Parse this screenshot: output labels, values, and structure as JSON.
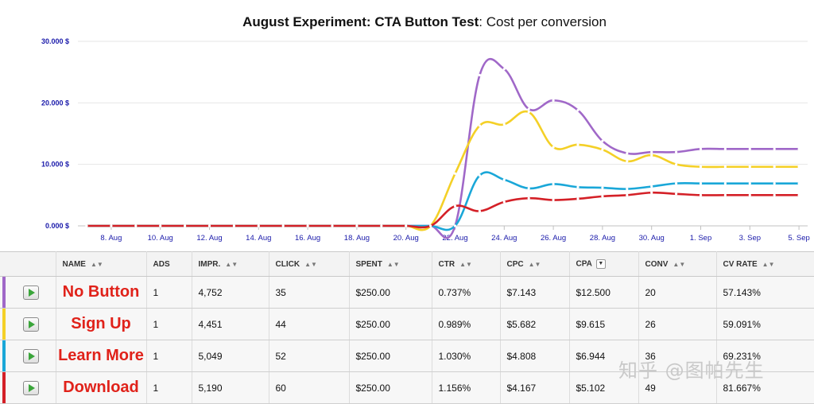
{
  "chart_data": {
    "type": "line",
    "title_bold": "August Experiment: CTA Button Test",
    "title_rest": ": Cost per conversion",
    "y_ticks": [
      {
        "value": 0,
        "label": "0.000 $"
      },
      {
        "value": 10000,
        "label": "10.000 $"
      },
      {
        "value": 20000,
        "label": "20.000 $"
      },
      {
        "value": 30000,
        "label": "30.000 $"
      }
    ],
    "ylim": [
      0,
      30000
    ],
    "x_ticks": [
      "8. Aug",
      "10. Aug",
      "12. Aug",
      "14. Aug",
      "16. Aug",
      "18. Aug",
      "20. Aug",
      "22. Aug",
      "24. Aug",
      "26. Aug",
      "28. Aug",
      "30. Aug",
      "1. Sep",
      "3. Sep",
      "5. Sep"
    ],
    "x_dates": [
      "2014-08-07",
      "2014-08-08",
      "2014-08-09",
      "2014-08-10",
      "2014-08-11",
      "2014-08-12",
      "2014-08-13",
      "2014-08-14",
      "2014-08-15",
      "2014-08-16",
      "2014-08-17",
      "2014-08-18",
      "2014-08-19",
      "2014-08-20",
      "2014-08-21",
      "2014-08-22",
      "2014-08-23",
      "2014-08-24",
      "2014-08-25",
      "2014-08-26",
      "2014-08-27",
      "2014-08-28",
      "2014-08-29",
      "2014-08-30",
      "2014-08-31",
      "2014-09-01",
      "2014-09-02",
      "2014-09-03",
      "2014-09-04",
      "2014-09-05"
    ],
    "grid": true,
    "legend": "none",
    "series": [
      {
        "color": "#a068c8",
        "values": [
          0,
          0,
          0,
          0,
          0,
          0,
          0,
          0,
          0,
          0,
          0,
          0,
          0,
          0,
          0,
          0,
          24500,
          25500,
          19000,
          20400,
          18800,
          13800,
          11800,
          12000,
          12000,
          12500,
          12500,
          12500,
          12500,
          12500
        ]
      },
      {
        "color": "#f4d027",
        "values": [
          0,
          0,
          0,
          0,
          0,
          0,
          0,
          0,
          0,
          0,
          0,
          0,
          0,
          0,
          0,
          8500,
          16300,
          16500,
          18500,
          12800,
          13200,
          12400,
          10500,
          11500,
          10000,
          9600,
          9600,
          9600,
          9600,
          9600
        ]
      },
      {
        "color": "#1aa7d8",
        "values": [
          0,
          0,
          0,
          0,
          0,
          0,
          0,
          0,
          0,
          0,
          0,
          0,
          0,
          0,
          0,
          0,
          8200,
          7500,
          6100,
          6800,
          6300,
          6200,
          6000,
          6400,
          6900,
          6900,
          6900,
          6900,
          6900,
          6900
        ]
      },
      {
        "color": "#d42027",
        "values": [
          0,
          0,
          0,
          0,
          0,
          0,
          0,
          0,
          0,
          0,
          0,
          0,
          0,
          0,
          0,
          3200,
          2400,
          3900,
          4500,
          4200,
          4400,
          4800,
          5000,
          5400,
          5200,
          5000,
          5000,
          5000,
          5000,
          5000
        ]
      }
    ]
  },
  "table": {
    "headers": [
      "",
      "NAME",
      "ADS",
      "IMPR.",
      "CLICK",
      "SPENT",
      "CTR",
      "CPC",
      "CPA",
      "CONV",
      "CV RATE"
    ],
    "sort_active_icon": "chevron-down-icon",
    "rows": [
      {
        "color": "#a068c8",
        "name": "No Button",
        "ads": "1",
        "impr": "4,752",
        "click": "35",
        "spent": "$250.00",
        "ctr": "0.737%",
        "cpc": "$7.143",
        "cpa": "$12.500",
        "conv": "20",
        "cv_rate": "57.143%"
      },
      {
        "color": "#f4d027",
        "name": "Sign Up",
        "ads": "1",
        "impr": "4,451",
        "click": "44",
        "spent": "$250.00",
        "ctr": "0.989%",
        "cpc": "$5.682",
        "cpa": "$9.615",
        "conv": "26",
        "cv_rate": "59.091%"
      },
      {
        "color": "#1aa7d8",
        "name": "Learn More",
        "ads": "1",
        "impr": "5,049",
        "click": "52",
        "spent": "$250.00",
        "ctr": "1.030%",
        "cpc": "$4.808",
        "cpa": "$6.944",
        "conv": "36",
        "cv_rate": "69.231%"
      },
      {
        "color": "#d42027",
        "name": "Download",
        "ads": "1",
        "impr": "5,190",
        "click": "60",
        "spent": "$250.00",
        "ctr": "1.156%",
        "cpc": "$4.167",
        "cpa": "$5.102",
        "conv": "49",
        "cv_rate": "81.667%"
      }
    ]
  },
  "watermark": "知乎 @图帕先生"
}
